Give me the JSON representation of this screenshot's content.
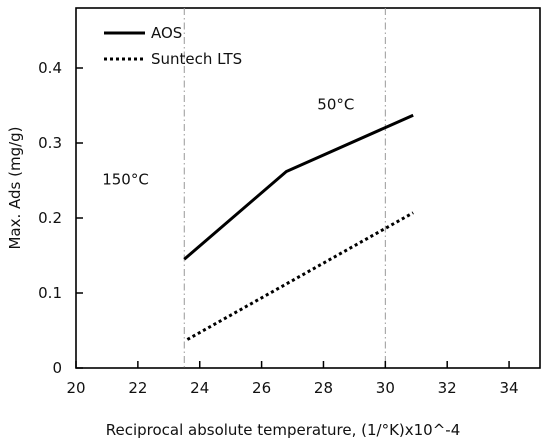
{
  "chart_data": {
    "type": "line",
    "title": "",
    "xlabel": "Reciprocal absolute temperature, (1/°K)x10^-4",
    "ylabel": "Max. Ads (mg/g)",
    "xlim": [
      20,
      35
    ],
    "ylim": [
      0,
      0.48
    ],
    "xticks": [
      "20",
      "22",
      "24",
      "26",
      "28",
      "30",
      "32",
      "34"
    ],
    "yticks": [
      "0",
      "0.1",
      "0.2",
      "0.3",
      "0.4"
    ],
    "grid": false,
    "legend_position": "top-left",
    "series": [
      {
        "name": "AOS",
        "style": "solid",
        "color": "#000000",
        "x": [
          23.5,
          26.8,
          30.9
        ],
        "y": [
          0.145,
          0.262,
          0.337
        ]
      },
      {
        "name": "Suntech LTS",
        "style": "dotted",
        "color": "#000000",
        "x": [
          23.6,
          30.9
        ],
        "y": [
          0.038,
          0.207
        ]
      }
    ],
    "reference_lines": [
      {
        "x": 23.5,
        "style": "dashdot",
        "color": "#999999"
      },
      {
        "x": 30.0,
        "style": "dashdot",
        "color": "#999999"
      }
    ],
    "annotations": [
      {
        "text": "150°C",
        "x": 21.6,
        "y": 0.245
      },
      {
        "text": "50°C",
        "x": 28.4,
        "y": 0.345
      }
    ]
  }
}
